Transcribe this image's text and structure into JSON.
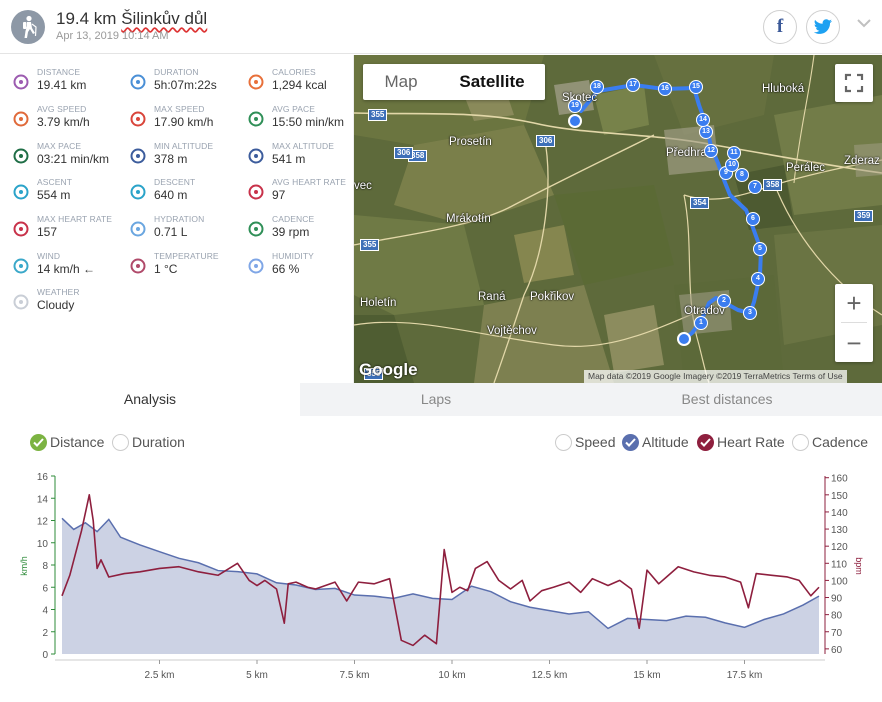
{
  "header": {
    "distance": "19.4 km",
    "place": "Šilinkův důl",
    "datetime": "Apr 13, 2019 10:14 AM"
  },
  "social": {
    "facebook_glyph": "f",
    "twitter_glyph": "t"
  },
  "stats": [
    {
      "label": "DISTANCE",
      "value": "19.41 km",
      "icon": "distance-icon",
      "color": "#9c5bb0"
    },
    {
      "label": "DURATION",
      "value": "5h:07m:22s",
      "icon": "stopwatch-icon",
      "color": "#4a8fd6"
    },
    {
      "label": "CALORIES",
      "value": "1,294 kcal",
      "icon": "flame-icon",
      "color": "#e8703a"
    },
    {
      "label": "AVG SPEED",
      "value": "3.79 km/h",
      "icon": "speedometer-icon",
      "color": "#e06a3a"
    },
    {
      "label": "MAX SPEED",
      "value": "17.90 km/h",
      "icon": "speedometer-icon",
      "color": "#d9453a"
    },
    {
      "label": "AVG PACE",
      "value": "15:50 min/km",
      "icon": "pace-gauge-icon",
      "color": "#2f8f57"
    },
    {
      "label": "MAX PACE",
      "value": "03:21 min/km",
      "icon": "pace-gauge-icon",
      "color": "#1f6e46"
    },
    {
      "label": "MIN ALTITUDE",
      "value": "378 m",
      "icon": "mountain-icon",
      "color": "#3c5c9c"
    },
    {
      "label": "MAX ALTITUDE",
      "value": "541 m",
      "icon": "mountain-icon",
      "color": "#3c5c9c"
    },
    {
      "label": "ASCENT",
      "value": "554 m",
      "icon": "ascent-icon",
      "color": "#2aa3c9"
    },
    {
      "label": "DESCENT",
      "value": "640 m",
      "icon": "descent-icon",
      "color": "#2aa3c9"
    },
    {
      "label": "AVG HEART RATE",
      "value": "97",
      "icon": "heart-pulse-icon",
      "color": "#c8324a"
    },
    {
      "label": "MAX HEART RATE",
      "value": "157",
      "icon": "heart-pulse-icon",
      "color": "#c8324a"
    },
    {
      "label": "HYDRATION",
      "value": "0.71 L",
      "icon": "water-drops-icon",
      "color": "#6aa6e0"
    },
    {
      "label": "CADENCE",
      "value": "39 rpm",
      "icon": "cadence-wheel-icon",
      "color": "#2f8f57"
    },
    {
      "label": "WIND",
      "value": "14 km/h ←",
      "icon": "wind-icon",
      "color": "#3aa8c9"
    },
    {
      "label": "TEMPERATURE",
      "value": "1 °C",
      "icon": "thermometer-icon",
      "color": "#b04a6a"
    },
    {
      "label": "HUMIDITY",
      "value": "66 %",
      "icon": "humidity-icon",
      "color": "#7fa6e6"
    },
    {
      "label": "WEATHER",
      "value": "Cloudy",
      "icon": "cloud-icon",
      "color": "#c9ced6"
    }
  ],
  "map": {
    "map_label": "Map",
    "satellite_label": "Satellite",
    "zoom_in": "+",
    "zoom_out": "−",
    "google": "Google",
    "attribution": "Map data ©2019 Google Imagery ©2019 TerraMetrics   Terms of Use",
    "places": [
      {
        "name": "Skotec"
      },
      {
        "name": "Hluboká"
      },
      {
        "name": "Prosetín"
      },
      {
        "name": "Předhradí"
      },
      {
        "name": "Perálec"
      },
      {
        "name": "Zderaz"
      },
      {
        "name": "vec"
      },
      {
        "name": "Mrákotín"
      },
      {
        "name": "Holetín"
      },
      {
        "name": "Raná"
      },
      {
        "name": "Pokřikov"
      },
      {
        "name": "Vojtěchov"
      },
      {
        "name": "Otradov"
      }
    ],
    "roads": [
      "355",
      "358",
      "306",
      "306",
      "354",
      "358",
      "359",
      "355",
      "355"
    ],
    "markers": [
      "1",
      "2",
      "3",
      "4",
      "5",
      "6",
      "7",
      "8",
      "9",
      "10",
      "11",
      "12",
      "13",
      "14",
      "15",
      "16",
      "17",
      "18",
      "19"
    ]
  },
  "tabs": [
    {
      "label": "Analysis",
      "active": true
    },
    {
      "label": "Laps",
      "active": false
    },
    {
      "label": "Best distances",
      "active": false
    }
  ],
  "options": {
    "x_axis": [
      {
        "label": "Distance",
        "checked": true,
        "color": "#7cb342"
      },
      {
        "label": "Duration",
        "checked": false
      }
    ],
    "series": [
      {
        "label": "Speed",
        "checked": false
      },
      {
        "label": "Altitude",
        "checked": true,
        "color": "#5a6fae"
      },
      {
        "label": "Heart Rate",
        "checked": true,
        "color": "#8e1f3e"
      },
      {
        "label": "Cadence",
        "checked": false
      }
    ]
  },
  "chart_data": {
    "type": "line",
    "xlabel": "",
    "x_ticks": [
      "2.5 km",
      "5 km",
      "7.5 km",
      "10 km",
      "12.5 km",
      "15 km",
      "17.5 km"
    ],
    "x_tick_values": [
      2.5,
      5,
      7.5,
      10,
      12.5,
      15,
      17.5
    ],
    "xlim": [
      0,
      19.41
    ],
    "left_axis": {
      "label": "km/h",
      "ticks": [
        0,
        2,
        4,
        6,
        8,
        10,
        12,
        14,
        16
      ],
      "ylim": [
        0,
        16
      ],
      "color": "#2e8b3a"
    },
    "right_axis": {
      "label": "bpm",
      "ticks": [
        60,
        70,
        80,
        90,
        100,
        110,
        120,
        130,
        140,
        150,
        160
      ],
      "ylim": [
        57,
        161
      ],
      "color": "#8e1f3e"
    },
    "series": [
      {
        "name": "Altitude",
        "color": "#5a6fae",
        "fill": "#ccd2e4",
        "axis": "left",
        "x": [
          0,
          0.3,
          0.6,
          0.9,
          1.2,
          1.5,
          2,
          2.5,
          3,
          3.5,
          4,
          4.5,
          5,
          5.5,
          6,
          6.5,
          7,
          7.5,
          8,
          8.5,
          9,
          9.5,
          10,
          10.5,
          11,
          11.5,
          12,
          12.5,
          13,
          13.5,
          14,
          14.5,
          15,
          15.5,
          16,
          16.5,
          17,
          17.5,
          18,
          18.5,
          19,
          19.41
        ],
        "y": [
          12.2,
          11.2,
          11.8,
          11.0,
          12.1,
          10.5,
          9.8,
          9.2,
          8.6,
          8.2,
          7.5,
          7.4,
          7.2,
          6.4,
          6.2,
          5.8,
          5.9,
          5.3,
          5.2,
          5.0,
          5.4,
          5.0,
          4.9,
          6.1,
          5.6,
          4.7,
          4.2,
          3.9,
          3.6,
          3.8,
          2.3,
          3.2,
          3.1,
          3.0,
          3.4,
          3.3,
          2.8,
          2.4,
          3.1,
          3.6,
          4.4,
          5.2
        ]
      },
      {
        "name": "Heart Rate",
        "color": "#8e1f3e",
        "axis": "right",
        "x": [
          0,
          0.2,
          0.5,
          0.7,
          0.8,
          0.9,
          1.0,
          1.2,
          1.6,
          2.0,
          2.5,
          3.0,
          3.5,
          4.0,
          4.5,
          4.8,
          5.0,
          5.2,
          5.5,
          5.7,
          5.8,
          6.0,
          6.3,
          6.5,
          7.0,
          7.3,
          7.6,
          8.0,
          8.4,
          8.7,
          9.0,
          9.3,
          9.6,
          9.8,
          10.0,
          10.2,
          10.4,
          10.6,
          10.9,
          11.2,
          11.5,
          11.8,
          12.0,
          12.3,
          12.6,
          13.0,
          13.3,
          13.6,
          14.0,
          14.3,
          14.6,
          14.8,
          15.0,
          15.3,
          15.5,
          15.8,
          16.2,
          16.6,
          17.0,
          17.4,
          17.6,
          17.8,
          18.2,
          18.6,
          18.9,
          19.2,
          19.41
        ],
        "y": [
          91,
          103,
          129,
          150,
          135,
          107,
          112,
          102,
          104,
          105,
          107,
          108,
          105,
          103,
          110,
          100,
          97,
          100,
          95,
          75,
          98,
          99,
          96,
          95,
          99,
          88,
          99,
          98,
          101,
          65,
          62,
          68,
          63,
          118,
          93,
          96,
          94,
          107,
          111,
          100,
          95,
          100,
          88,
          94,
          96,
          99,
          93,
          101,
          97,
          100,
          95,
          72,
          106,
          98,
          102,
          108,
          105,
          103,
          102,
          99,
          84,
          104,
          103,
          102,
          100,
          91,
          96
        ]
      }
    ]
  }
}
